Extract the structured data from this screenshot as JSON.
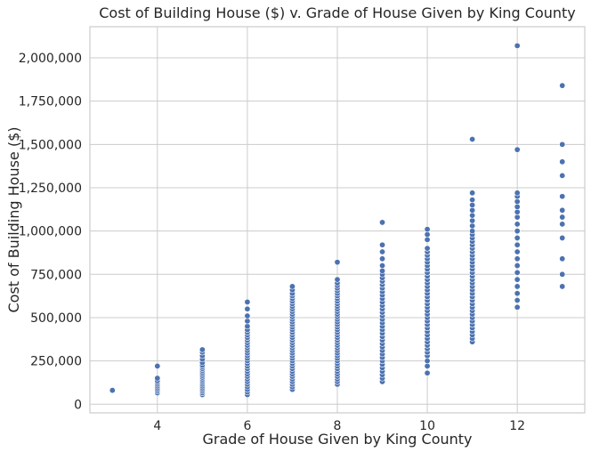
{
  "chart_data": {
    "type": "scatter",
    "title": "Cost of Building House ($) v. Grade of House Given by King County",
    "xlabel": "Grade of House Given by King County",
    "ylabel": "Cost of Building House ($)",
    "xlim": [
      2.5,
      13.5
    ],
    "ylim": [
      -50000,
      2180000
    ],
    "x_ticks": [
      4,
      6,
      8,
      10,
      12
    ],
    "x_tick_labels": [
      "4",
      "6",
      "8",
      "10",
      "12"
    ],
    "y_ticks": [
      0,
      250000,
      500000,
      750000,
      1000000,
      1250000,
      1500000,
      1750000,
      2000000
    ],
    "y_tick_labels": [
      "0",
      "250,000",
      "500,000",
      "750,000",
      "1,000,000",
      "1,250,000",
      "1,500,000",
      "1,750,000",
      "2,000,000"
    ],
    "grid": true,
    "point_color": "#4c72b0",
    "series": [
      {
        "x": 3,
        "y": [
          80000
        ]
      },
      {
        "x": 4,
        "y": [
          65000,
          75000,
          85000,
          95000,
          105000,
          115000,
          125000,
          135000,
          150000,
          220000
        ]
      },
      {
        "x": 5,
        "y": [
          55000,
          65000,
          75000,
          85000,
          95000,
          105000,
          115000,
          125000,
          135000,
          145000,
          155000,
          165000,
          175000,
          185000,
          195000,
          205000,
          215000,
          225000,
          240000,
          260000,
          280000,
          300000,
          315000
        ]
      },
      {
        "x": 6,
        "y": [
          55000,
          70000,
          85000,
          100000,
          115000,
          130000,
          145000,
          160000,
          175000,
          190000,
          205000,
          220000,
          235000,
          250000,
          265000,
          280000,
          295000,
          310000,
          325000,
          340000,
          355000,
          370000,
          385000,
          400000,
          415000,
          430000,
          450000,
          480000,
          510000,
          550000,
          590000
        ]
      },
      {
        "x": 7,
        "y": [
          85000,
          100000,
          115000,
          130000,
          145000,
          160000,
          175000,
          190000,
          205000,
          220000,
          235000,
          250000,
          265000,
          280000,
          295000,
          310000,
          325000,
          340000,
          355000,
          370000,
          385000,
          400000,
          415000,
          430000,
          445000,
          460000,
          475000,
          490000,
          505000,
          520000,
          535000,
          550000,
          565000,
          580000,
          595000,
          610000,
          625000,
          640000,
          660000,
          680000
        ]
      },
      {
        "x": 8,
        "y": [
          115000,
          130000,
          145000,
          160000,
          175000,
          190000,
          205000,
          220000,
          235000,
          250000,
          265000,
          280000,
          295000,
          310000,
          325000,
          340000,
          355000,
          370000,
          385000,
          400000,
          415000,
          430000,
          445000,
          460000,
          475000,
          490000,
          505000,
          520000,
          535000,
          550000,
          565000,
          580000,
          595000,
          610000,
          625000,
          640000,
          655000,
          670000,
          685000,
          700000,
          720000,
          820000
        ]
      },
      {
        "x": 9,
        "y": [
          130000,
          150000,
          170000,
          190000,
          210000,
          230000,
          250000,
          270000,
          290000,
          310000,
          330000,
          350000,
          370000,
          390000,
          410000,
          430000,
          450000,
          470000,
          490000,
          510000,
          530000,
          550000,
          570000,
          590000,
          610000,
          630000,
          650000,
          670000,
          690000,
          710000,
          730000,
          750000,
          770000,
          800000,
          840000,
          880000,
          920000,
          1050000
        ]
      },
      {
        "x": 10,
        "y": [
          180000,
          220000,
          250000,
          280000,
          300000,
          320000,
          340000,
          360000,
          380000,
          400000,
          420000,
          440000,
          460000,
          480000,
          500000,
          520000,
          540000,
          560000,
          580000,
          600000,
          620000,
          640000,
          660000,
          680000,
          700000,
          720000,
          740000,
          760000,
          780000,
          800000,
          820000,
          840000,
          860000,
          880000,
          900000,
          950000,
          980000,
          1010000
        ]
      },
      {
        "x": 11,
        "y": [
          360000,
          380000,
          400000,
          420000,
          440000,
          460000,
          480000,
          500000,
          520000,
          540000,
          560000,
          580000,
          600000,
          620000,
          640000,
          660000,
          680000,
          700000,
          720000,
          740000,
          760000,
          780000,
          800000,
          820000,
          840000,
          860000,
          880000,
          900000,
          920000,
          940000,
          960000,
          980000,
          1000000,
          1030000,
          1060000,
          1090000,
          1120000,
          1150000,
          1180000,
          1220000,
          1530000
        ]
      },
      {
        "x": 12,
        "y": [
          560000,
          600000,
          640000,
          680000,
          720000,
          760000,
          800000,
          840000,
          880000,
          920000,
          960000,
          1000000,
          1040000,
          1080000,
          1110000,
          1140000,
          1170000,
          1200000,
          1220000,
          1470000,
          2070000
        ]
      },
      {
        "x": 13,
        "y": [
          680000,
          750000,
          840000,
          960000,
          1040000,
          1080000,
          1120000,
          1200000,
          1320000,
          1400000,
          1500000,
          1840000
        ]
      }
    ]
  }
}
